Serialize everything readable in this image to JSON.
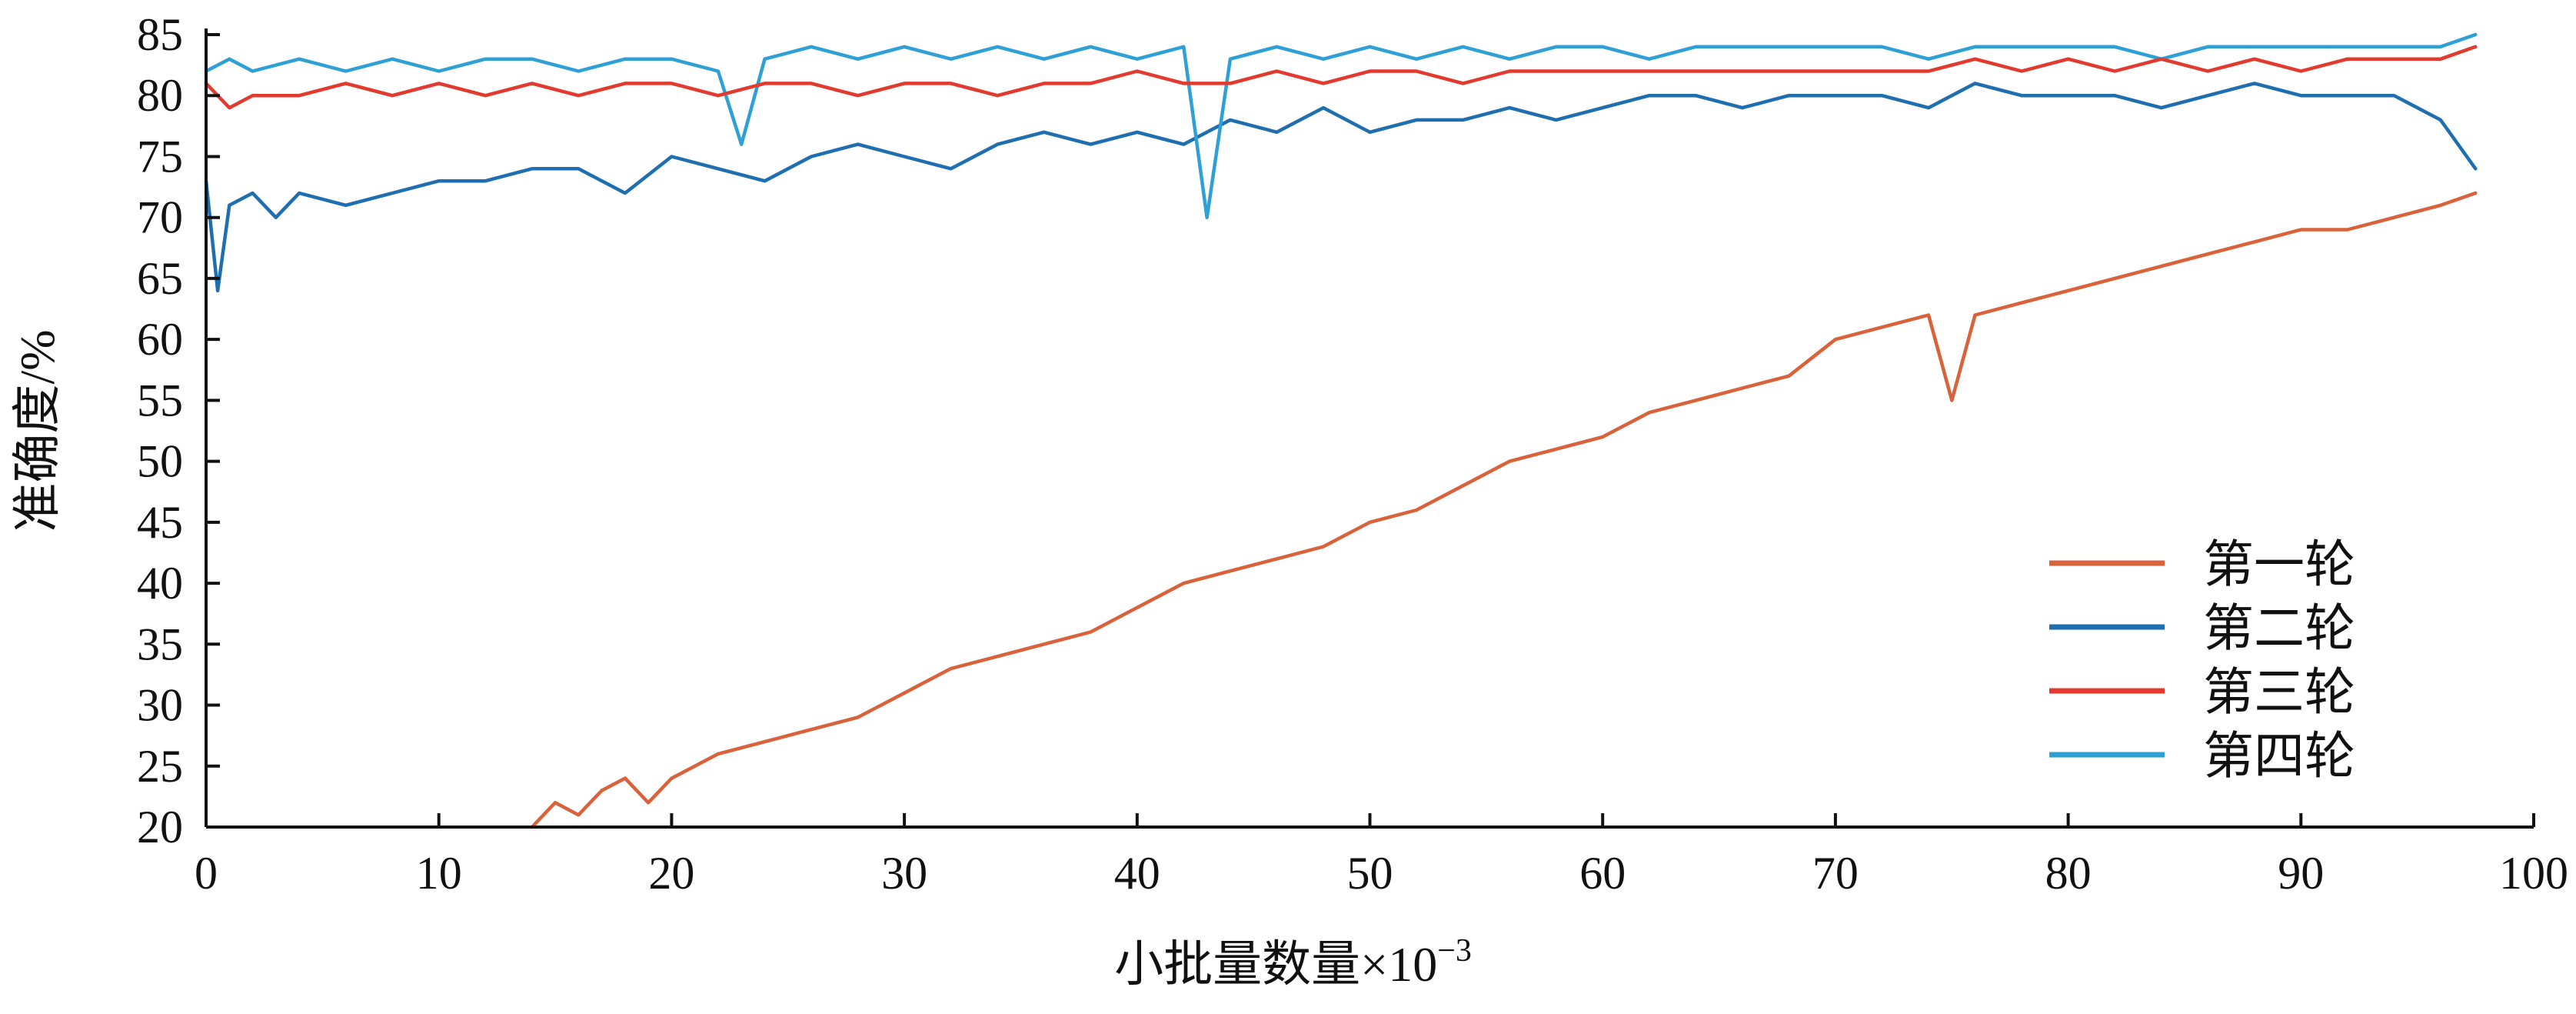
{
  "chart_data": {
    "type": "line",
    "xlabel": "小批量数量×10",
    "xlabel_exponent": "−3",
    "ylabel": "准确度/%",
    "xlim": [
      0,
      100
    ],
    "ylim": [
      20,
      85
    ],
    "x_ticks": [
      "0",
      "10",
      "20",
      "30",
      "40",
      "50",
      "60",
      "70",
      "80",
      "90",
      "100"
    ],
    "y_ticks": [
      "20",
      "25",
      "30",
      "35",
      "40",
      "45",
      "50",
      "55",
      "60",
      "65",
      "70",
      "75",
      "80",
      "85"
    ],
    "grid": false,
    "legend_position": "bottom-right",
    "series": [
      {
        "name": "第一轮",
        "color": "#d9623b",
        "x": [
          14.0,
          15,
          16,
          17,
          18,
          19,
          20,
          21,
          22,
          24,
          26,
          28,
          30,
          32,
          34,
          36,
          38,
          40,
          42,
          44,
          46,
          48,
          50,
          52,
          54,
          56,
          58,
          60,
          62,
          64,
          66,
          68,
          70,
          72,
          74,
          75,
          76,
          78,
          80,
          82,
          84,
          86,
          88,
          90,
          92,
          94,
          96,
          97.5
        ],
        "values": [
          20,
          22,
          21,
          23,
          24,
          22,
          24,
          25,
          26,
          27,
          28,
          29,
          31,
          33,
          34,
          35,
          36,
          38,
          40,
          41,
          42,
          43,
          45,
          46,
          48,
          50,
          51,
          52,
          54,
          55,
          56,
          57,
          60,
          61,
          62,
          55,
          62,
          63,
          64,
          65,
          66,
          67,
          68,
          69,
          69,
          70,
          71,
          72
        ]
      },
      {
        "name": "第二轮",
        "color": "#1f6fb0",
        "x": [
          0,
          0.5,
          1,
          2,
          3,
          4,
          6,
          8,
          10,
          12,
          14,
          16,
          18,
          20,
          22,
          24,
          26,
          28,
          30,
          32,
          34,
          36,
          38,
          40,
          42,
          44,
          46,
          48,
          50,
          52,
          54,
          56,
          58,
          60,
          62,
          64,
          66,
          68,
          70,
          72,
          74,
          76,
          78,
          80,
          82,
          84,
          86,
          88,
          90,
          92,
          94,
          96,
          97.5
        ],
        "values": [
          73,
          64,
          71,
          72,
          70,
          72,
          71,
          72,
          73,
          73,
          74,
          74,
          72,
          75,
          74,
          73,
          75,
          76,
          75,
          74,
          76,
          77,
          76,
          77,
          76,
          78,
          77,
          79,
          77,
          78,
          78,
          79,
          78,
          79,
          80,
          80,
          79,
          80,
          80,
          80,
          79,
          81,
          80,
          80,
          80,
          79,
          80,
          81,
          80,
          80,
          80,
          78,
          74
        ]
      },
      {
        "name": "第三轮",
        "color": "#e23a2f",
        "x": [
          0,
          1,
          2,
          4,
          6,
          8,
          10,
          12,
          14,
          16,
          18,
          20,
          22,
          24,
          26,
          28,
          30,
          32,
          34,
          36,
          38,
          40,
          42,
          44,
          46,
          48,
          50,
          52,
          54,
          56,
          58,
          60,
          62,
          64,
          66,
          68,
          70,
          72,
          74,
          76,
          78,
          80,
          82,
          84,
          86,
          88,
          90,
          92,
          94,
          96,
          97.5
        ],
        "values": [
          81,
          79,
          80,
          80,
          81,
          80,
          81,
          80,
          81,
          80,
          81,
          81,
          80,
          81,
          81,
          80,
          81,
          81,
          80,
          81,
          81,
          82,
          81,
          81,
          82,
          81,
          82,
          82,
          81,
          82,
          82,
          82,
          82,
          82,
          82,
          82,
          82,
          82,
          82,
          83,
          82,
          83,
          82,
          83,
          82,
          83,
          82,
          83,
          83,
          83,
          84
        ]
      },
      {
        "name": "第四轮",
        "color": "#2fa0d6",
        "x": [
          0,
          1,
          2,
          4,
          6,
          8,
          10,
          12,
          14,
          16,
          18,
          20,
          22,
          23,
          24,
          26,
          28,
          30,
          32,
          34,
          36,
          38,
          40,
          42,
          43,
          44,
          46,
          48,
          50,
          52,
          54,
          56,
          58,
          60,
          62,
          64,
          66,
          68,
          70,
          72,
          74,
          76,
          78,
          80,
          82,
          84,
          86,
          88,
          90,
          92,
          94,
          96,
          97.5
        ],
        "values": [
          82,
          83,
          82,
          83,
          82,
          83,
          82,
          83,
          83,
          82,
          83,
          83,
          82,
          76,
          83,
          84,
          83,
          84,
          83,
          84,
          83,
          84,
          83,
          84,
          70,
          83,
          84,
          83,
          84,
          83,
          84,
          83,
          84,
          84,
          83,
          84,
          84,
          84,
          84,
          84,
          83,
          84,
          84,
          84,
          84,
          83,
          84,
          84,
          84,
          84,
          84,
          84,
          85
        ]
      }
    ]
  }
}
